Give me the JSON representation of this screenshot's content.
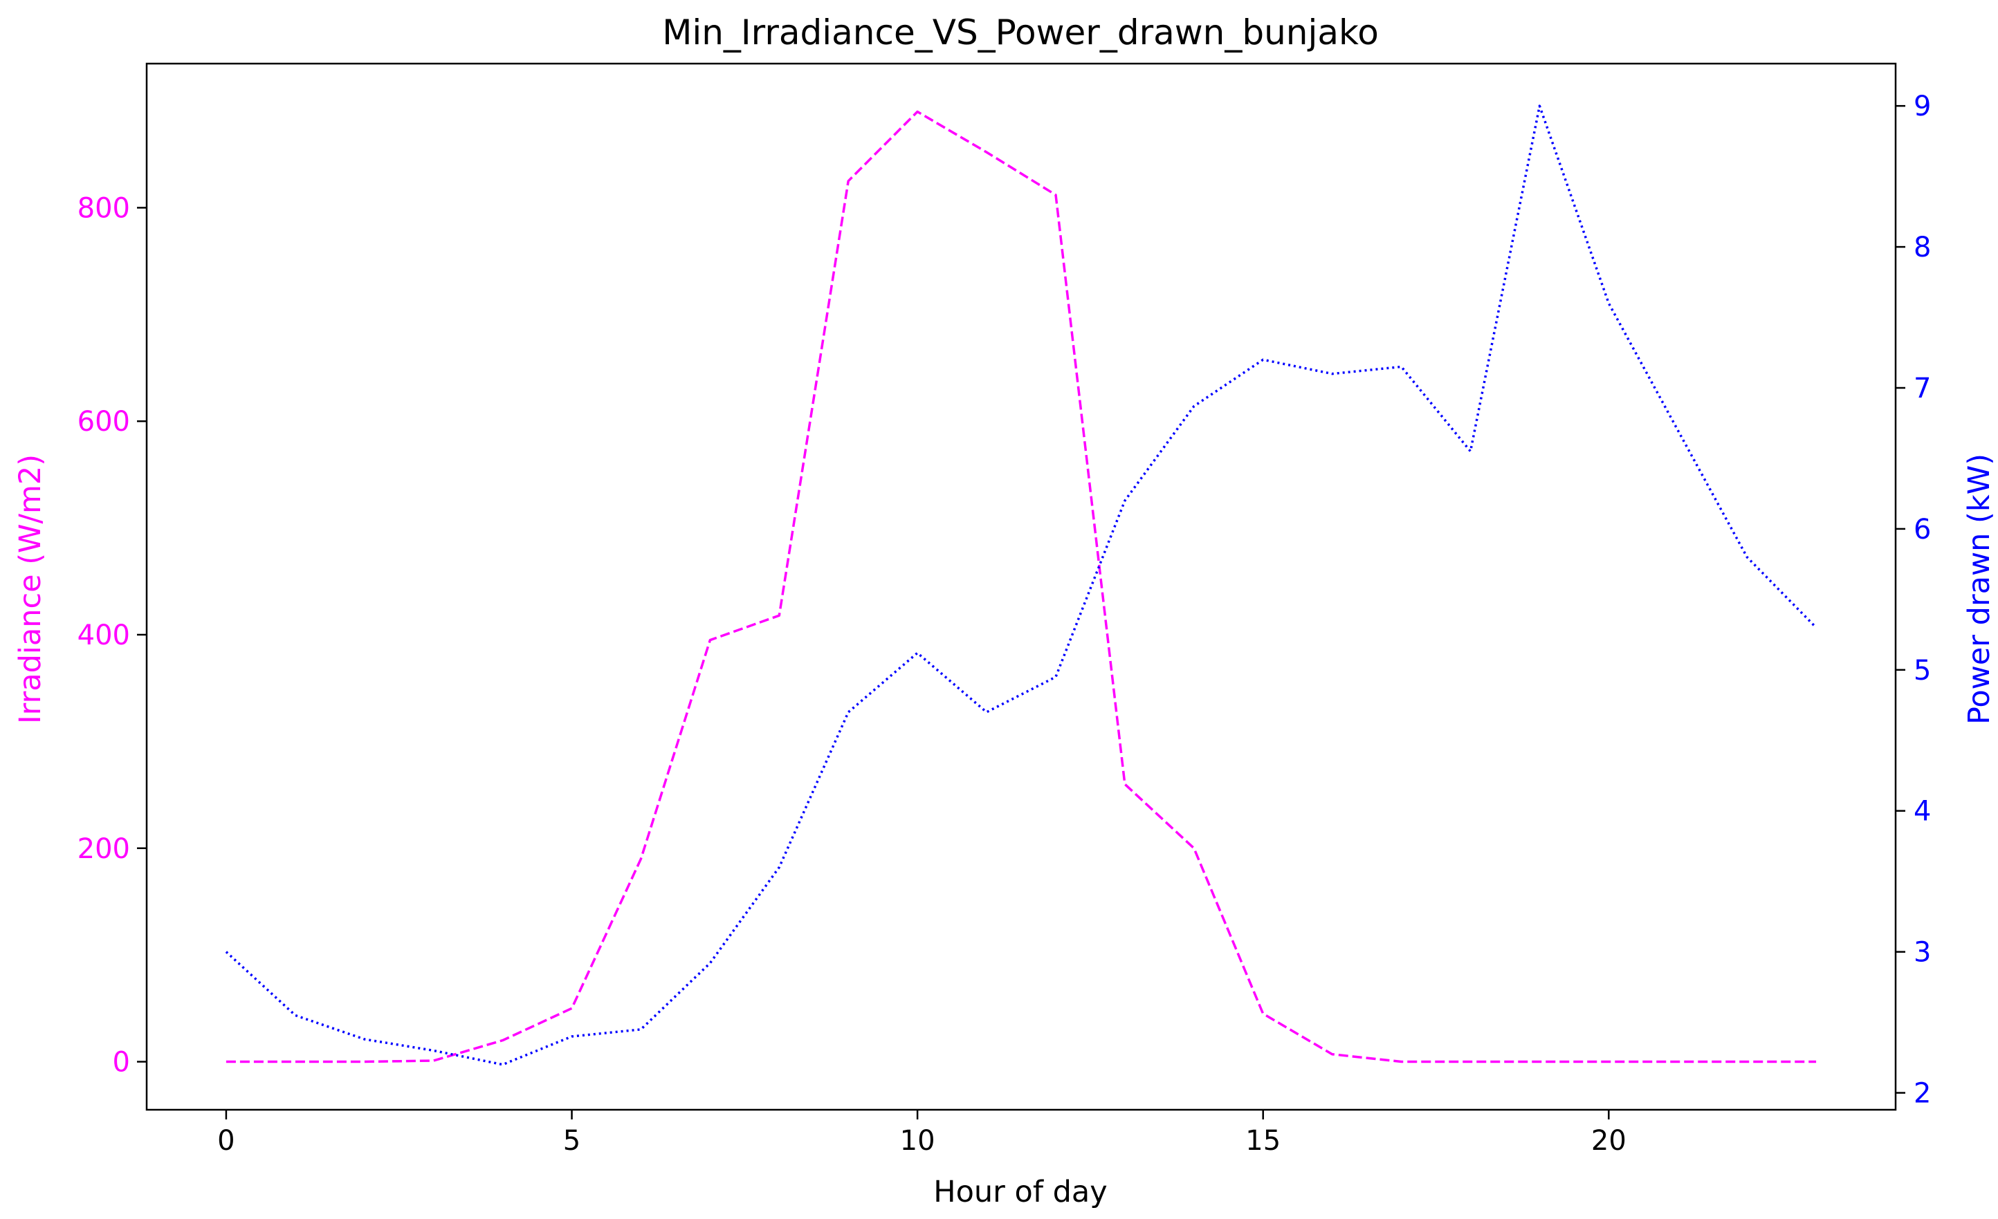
{
  "chart_data": {
    "type": "line",
    "title": "Min_Irradiance_VS_Power_drawn_bunjako",
    "xlabel": "Hour of day",
    "ylabel": "Irradiance (W/m2)",
    "y2label": "Power drawn (kW)",
    "xlim": [
      -1.15,
      24.15
    ],
    "ylim": [
      -45,
      935
    ],
    "y2lim": [
      1.88,
      9.3
    ],
    "xticks": [
      0,
      5,
      10,
      15,
      20
    ],
    "yticks": [
      0,
      200,
      400,
      600,
      800
    ],
    "y2ticks": [
      2,
      3,
      4,
      5,
      6,
      7,
      8,
      9
    ],
    "grid": false,
    "x": [
      0,
      1,
      2,
      3,
      4,
      5,
      6,
      7,
      8,
      9,
      10,
      11,
      12,
      13,
      14,
      15,
      16,
      17,
      18,
      19,
      20,
      21,
      22,
      23
    ],
    "series": [
      {
        "axis": "left",
        "color": "#ff00ff",
        "linestyle": "dashed",
        "values": [
          0,
          0,
          0,
          1,
          20,
          50,
          190,
          395,
          418,
          825,
          890,
          852,
          812,
          260,
          200,
          45,
          7,
          0,
          0,
          0,
          0,
          0,
          0,
          0
        ]
      },
      {
        "axis": "right",
        "color": "#0000ff",
        "linestyle": "dotted",
        "values": [
          3.0,
          2.55,
          2.38,
          2.3,
          2.2,
          2.4,
          2.45,
          2.92,
          3.6,
          4.7,
          5.12,
          4.7,
          4.95,
          6.2,
          6.87,
          7.2,
          7.1,
          7.15,
          6.55,
          9.0,
          7.6,
          6.7,
          5.8,
          5.3
        ]
      }
    ],
    "colors": {
      "left_axis": "#ff00ff",
      "right_axis": "#0000ff",
      "frame": "#000000"
    }
  }
}
